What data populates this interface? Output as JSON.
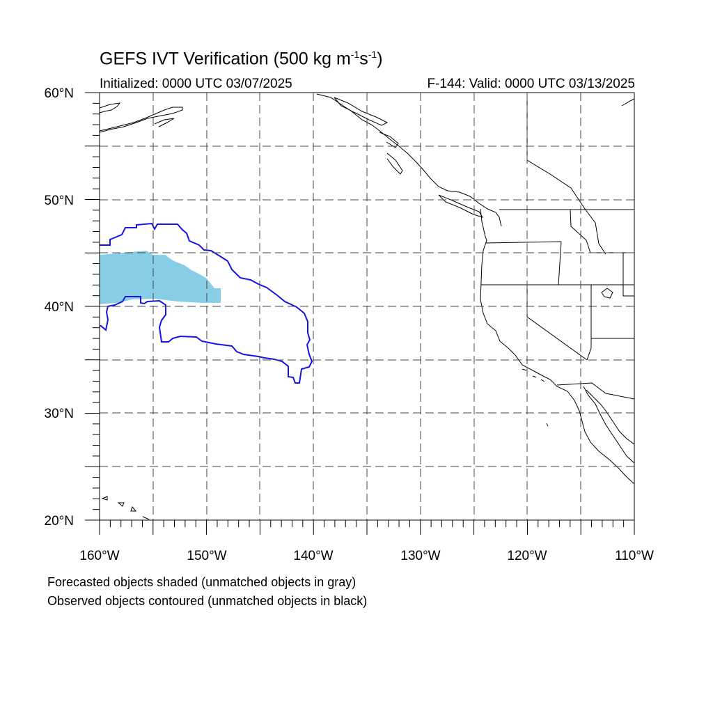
{
  "title": {
    "prefix": "GEFS IVT Verification (500 kg m",
    "exp1": "-1",
    "mid": "s",
    "exp2": "-1",
    "suffix": ")"
  },
  "initialized": "Initialized: 0000 UTC 03/07/2025",
  "valid": "F-144: Valid: 0000 UTC 03/13/2025",
  "axes": {
    "lat_labels": [
      "60°N",
      "50°N",
      "40°N",
      "30°N",
      "20°N"
    ],
    "lon_labels": [
      "160°W",
      "150°W",
      "140°W",
      "130°W",
      "120°W",
      "110°W"
    ]
  },
  "footnotes": {
    "line1": "Forecasted objects shaded (unmatched objects in gray)",
    "line2": "Observed objects contoured (unmatched objects in black)"
  },
  "map": {
    "extent": {
      "lon_min": -160,
      "lon_max": -110,
      "lat_min": 20,
      "lat_max": 60
    },
    "forecast_object_color": "#87CEE6",
    "observed_contour_color": "#1414E6",
    "coast_color": "#000000",
    "grid_color": "#444444"
  }
}
